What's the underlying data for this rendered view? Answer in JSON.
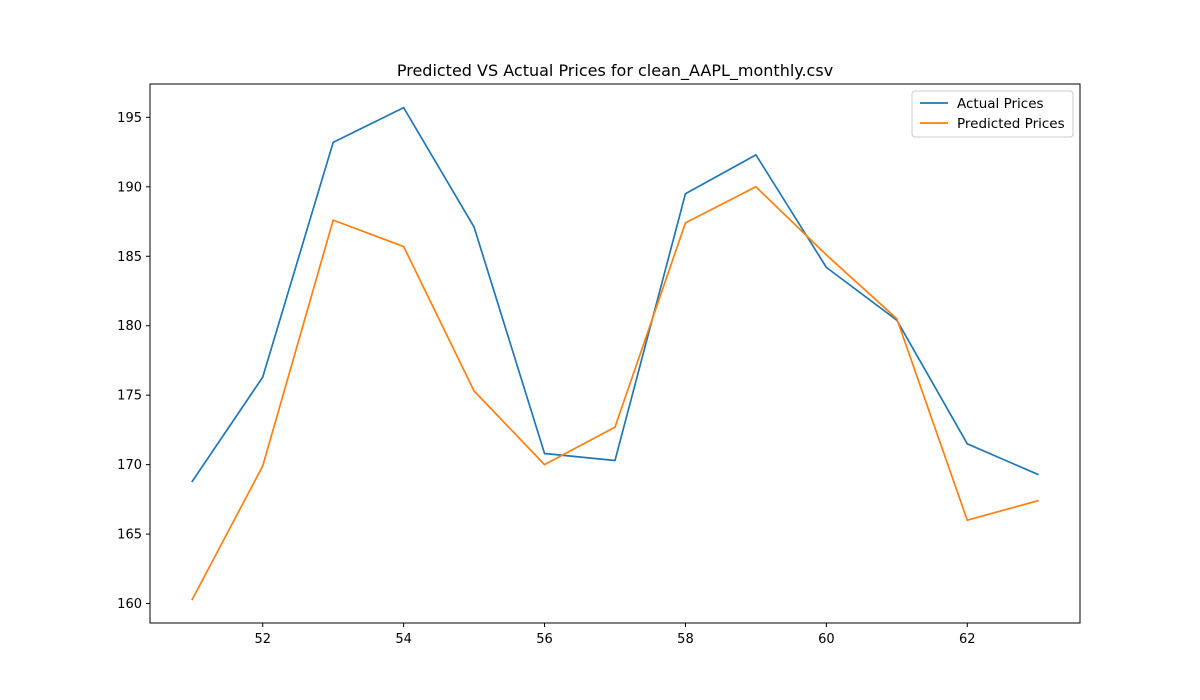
{
  "chart_data": {
    "type": "line",
    "title": "Predicted VS Actual Prices for clean_AAPL_monthly.csv",
    "xlabel": "",
    "ylabel": "",
    "x": [
      51,
      52,
      53,
      54,
      55,
      56,
      57,
      58,
      59,
      60,
      61,
      62,
      63
    ],
    "xlim": [
      50.4,
      63.6
    ],
    "ylim": [
      158.6,
      197.4
    ],
    "xticks": [
      52,
      54,
      56,
      58,
      60,
      62
    ],
    "yticks": [
      160,
      165,
      170,
      175,
      180,
      185,
      190,
      195
    ],
    "grid": false,
    "legend_position": "upper-right",
    "series": [
      {
        "name": "Actual Prices",
        "color": "#1f77b4",
        "values": [
          168.8,
          176.3,
          193.2,
          195.7,
          187.1,
          170.8,
          170.3,
          189.5,
          192.3,
          184.2,
          180.4,
          171.5,
          169.3
        ]
      },
      {
        "name": "Predicted Prices",
        "color": "#ff7f0e",
        "values": [
          160.3,
          169.9,
          187.6,
          185.7,
          175.3,
          170.0,
          172.7,
          187.4,
          190.0,
          185.1,
          180.5,
          166.0,
          167.4
        ]
      }
    ]
  }
}
